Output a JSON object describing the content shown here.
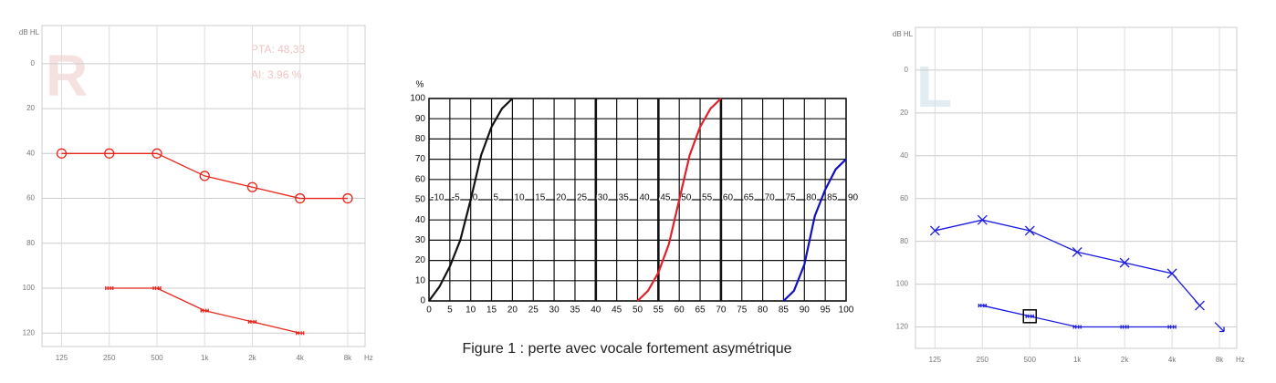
{
  "chart_data": [
    {
      "type": "line",
      "letter": "R",
      "y_axis_label": "dB HL",
      "x_unit": "Hz",
      "annotations": [
        "PTA: 48,33",
        "AI: 3.96 %"
      ],
      "x_scale": "log",
      "xlim": [
        94,
        10300
      ],
      "xticks": [
        125,
        250,
        500,
        {
          "value": 1000,
          "label": "1k"
        },
        {
          "value": 2000,
          "label": "2k"
        },
        {
          "value": 4000,
          "label": "4k"
        },
        {
          "value": 8000,
          "label": "8k"
        }
      ],
      "ylim": [
        -17,
        126
      ],
      "y_inverted": true,
      "yticks": [
        0,
        20,
        40,
        60,
        80,
        100,
        120
      ],
      "grid": true,
      "series": [
        {
          "color": "#e8261c",
          "marker": "circle",
          "x": [
            125,
            250,
            500,
            1000,
            2000,
            4000,
            8000
          ],
          "values": [
            40,
            40,
            40,
            50,
            55,
            60,
            60
          ]
        },
        {
          "color": "#e8261c",
          "marker": "bracket",
          "x": [
            250,
            500,
            1000,
            2000,
            4000
          ],
          "values": [
            100,
            100,
            110,
            115,
            120
          ]
        }
      ]
    },
    {
      "type": "line",
      "y_axis_label": "%",
      "xlim": [
        0,
        100
      ],
      "xticks": [
        0,
        5,
        10,
        15,
        20,
        25,
        30,
        35,
        40,
        45,
        50,
        55,
        60,
        65,
        70,
        75,
        80,
        85,
        90,
        95,
        100
      ],
      "x2lim": [
        -10,
        90
      ],
      "x2ticks": [
        -10,
        -5,
        0,
        5,
        10,
        15,
        20,
        25,
        30,
        35,
        40,
        45,
        50,
        55,
        60,
        65,
        70,
        75,
        80,
        85,
        90
      ],
      "ylim": [
        0,
        100
      ],
      "yticks": [
        0,
        10,
        20,
        30,
        40,
        50,
        60,
        70,
        80,
        90,
        100
      ],
      "grid": true,
      "emphasized_xlines": [
        40,
        55,
        70
      ],
      "series": [
        {
          "color": "#111111",
          "x": [
            0,
            2.5,
            5,
            7.5,
            10,
            12.5,
            15,
            17.5,
            20
          ],
          "values": [
            0,
            7,
            17,
            30,
            50,
            72,
            86,
            95,
            100
          ]
        },
        {
          "color": "#e0202a",
          "x": [
            50,
            52.5,
            55,
            57.5,
            60,
            62.5,
            65,
            67.5,
            70
          ],
          "values": [
            0,
            5,
            14,
            28,
            50,
            72,
            86,
            95,
            100
          ]
        },
        {
          "color": "#1010c0",
          "x": [
            85,
            87.5,
            90,
            92.5,
            95,
            97.5,
            100
          ],
          "values": [
            0,
            5,
            18,
            42,
            55,
            65,
            70
          ]
        }
      ]
    },
    {
      "type": "line",
      "letter": "L",
      "y_axis_label": "dB HL",
      "x_unit": "Hz",
      "x_scale": "log",
      "xlim": [
        94,
        10300
      ],
      "xticks": [
        125,
        250,
        500,
        {
          "value": 1000,
          "label": "1k"
        },
        {
          "value": 2000,
          "label": "2k"
        },
        {
          "value": 4000,
          "label": "4k"
        },
        {
          "value": 8000,
          "label": "8k"
        }
      ],
      "ylim": [
        -20,
        130
      ],
      "y_inverted": true,
      "yticks": [
        0,
        20,
        40,
        60,
        80,
        100,
        120
      ],
      "grid": true,
      "series": [
        {
          "color": "#1a1ae0",
          "marker": "cross",
          "x": [
            125,
            250,
            500,
            1000,
            2000,
            4000,
            6000
          ],
          "values": [
            75,
            70,
            75,
            85,
            90,
            95,
            110
          ]
        },
        {
          "color": "#1a1ae0",
          "marker": "arrow",
          "x": [
            8000
          ],
          "values": [
            120
          ]
        },
        {
          "color": "#1a1ae0",
          "marker": "bracket",
          "highlight_index": 1,
          "x": [
            250,
            500,
            1000,
            2000,
            4000
          ],
          "values": [
            110,
            115,
            120,
            120,
            120
          ]
        }
      ]
    }
  ],
  "caption": "Figure 1 : perte avec vocale fortement asymétrique"
}
